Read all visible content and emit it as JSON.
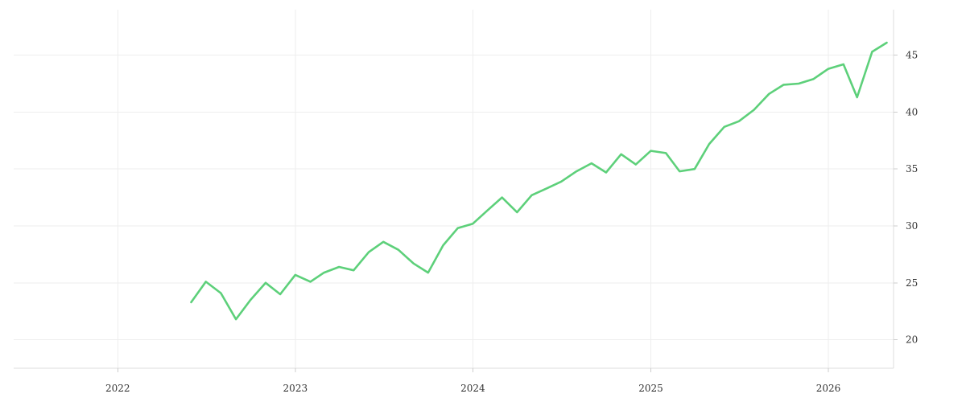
{
  "chart_data": {
    "type": "line",
    "title": "",
    "xlabel": "",
    "ylabel": "",
    "x_ticks": [
      "2022",
      "2023",
      "2024",
      "2025",
      "2026"
    ],
    "y_ticks": [
      20,
      25,
      30,
      35,
      40,
      45
    ],
    "xlim": [
      "2021-06-01",
      "2026-05-15"
    ],
    "ylim": [
      17.5,
      49
    ],
    "y_axis_side": "right",
    "grid": true,
    "legend": "none",
    "series": [
      {
        "color": "#5dd07a",
        "x": [
          "2022-06-01",
          "2022-07-01",
          "2022-08-01",
          "2022-09-01",
          "2022-10-01",
          "2022-11-01",
          "2022-12-01",
          "2023-01-01",
          "2023-02-01",
          "2023-03-01",
          "2023-04-01",
          "2023-05-01",
          "2023-06-01",
          "2023-07-01",
          "2023-08-01",
          "2023-09-01",
          "2023-10-01",
          "2023-11-01",
          "2023-12-01",
          "2024-01-01",
          "2024-02-01",
          "2024-03-01",
          "2024-04-01",
          "2024-05-01",
          "2024-06-01",
          "2024-07-01",
          "2024-08-01",
          "2024-09-01",
          "2024-10-01",
          "2024-11-01",
          "2024-12-01",
          "2025-01-01",
          "2025-02-01",
          "2025-03-01",
          "2025-04-01",
          "2025-05-01",
          "2025-06-01",
          "2025-07-01",
          "2025-08-01",
          "2025-09-01",
          "2025-10-01",
          "2025-11-01",
          "2025-12-01",
          "2026-01-01",
          "2026-02-01",
          "2026-03-01",
          "2026-04-01",
          "2026-05-01"
        ],
        "values": [
          23.3,
          25.1,
          24.1,
          21.8,
          23.5,
          25.0,
          24.0,
          25.7,
          25.1,
          25.9,
          26.4,
          26.1,
          27.7,
          28.6,
          27.9,
          26.7,
          25.9,
          28.3,
          29.8,
          30.2,
          31.4,
          32.5,
          31.2,
          32.7,
          33.3,
          33.9,
          34.8,
          35.5,
          34.7,
          36.3,
          35.4,
          36.6,
          36.4,
          34.8,
          35.0,
          37.2,
          38.7,
          39.2,
          40.2,
          41.6,
          42.4,
          42.5,
          42.9,
          43.8,
          44.2,
          41.3,
          45.3,
          46.1
        ]
      }
    ]
  }
}
